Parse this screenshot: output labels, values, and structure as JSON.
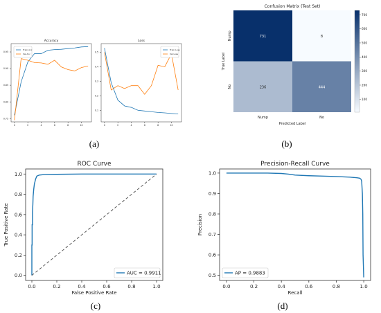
{
  "captions": [
    "(a)",
    "(b)",
    "(c)",
    "(d)"
  ],
  "chart_data": [
    {
      "panel": "a-left",
      "type": "line",
      "title": "Accuracy",
      "xlabel": "",
      "ylabel": "",
      "x": [
        0,
        1,
        2,
        3,
        4,
        5,
        6,
        7,
        8,
        9,
        10,
        11
      ],
      "xticks": [
        0,
        2,
        4,
        6,
        8,
        10
      ],
      "yticks": [
        0.75,
        0.8,
        0.85,
        0.9,
        0.95
      ],
      "ylim": [
        0.74,
        0.975
      ],
      "xlim": [
        -0.5,
        11.5
      ],
      "legend": "top-left",
      "series": [
        {
          "name": "Train Acc",
          "color": "#1f77b4",
          "values": [
            0.76,
            0.86,
            0.92,
            0.945,
            0.945,
            0.955,
            0.957,
            0.958,
            0.96,
            0.962,
            0.965,
            0.966
          ]
        },
        {
          "name": "Val Acc",
          "color": "#ff7f0e",
          "values": [
            0.745,
            0.93,
            0.925,
            0.918,
            0.917,
            0.913,
            0.925,
            0.905,
            0.897,
            0.893,
            0.903,
            0.908
          ]
        }
      ]
    },
    {
      "panel": "a-right",
      "type": "line",
      "title": "Loss",
      "xlabel": "",
      "ylabel": "",
      "x": [
        0,
        1,
        2,
        3,
        4,
        5,
        6,
        7,
        8,
        9,
        10,
        11
      ],
      "xticks": [
        0,
        2,
        4,
        6,
        8,
        10
      ],
      "yticks": [
        0.1,
        0.2,
        0.3,
        0.4,
        0.5
      ],
      "ylim": [
        0.02,
        0.56
      ],
      "xlim": [
        -0.5,
        11.5
      ],
      "legend": "top-right",
      "series": [
        {
          "name": "Train Loss",
          "color": "#1f77b4",
          "values": [
            0.53,
            0.29,
            0.17,
            0.13,
            0.12,
            0.1,
            0.095,
            0.09,
            0.085,
            0.082,
            0.078,
            0.075
          ]
        },
        {
          "name": "Val Loss",
          "color": "#ff7f0e",
          "values": [
            0.5,
            0.24,
            0.27,
            0.25,
            0.27,
            0.27,
            0.21,
            0.27,
            0.41,
            0.4,
            0.49,
            0.24
          ]
        }
      ]
    },
    {
      "panel": "b",
      "type": "heatmap",
      "title": "Confusion Matrix (Test Set)",
      "xlabel": "Predicted Label",
      "ylabel": "True Label",
      "row_labels": [
        "Nump",
        "No"
      ],
      "col_labels": [
        "Nump",
        "No"
      ],
      "values": [
        [
          731,
          8
        ],
        [
          236,
          444
        ]
      ],
      "colorbar_ticks": [
        100,
        200,
        300,
        400,
        500,
        600,
        700
      ],
      "colorbar_range": [
        8,
        731
      ]
    },
    {
      "panel": "c",
      "type": "line",
      "title": "ROC Curve",
      "xlabel": "False Positive Rate",
      "ylabel": "True Positive Rate",
      "xlim": [
        -0.05,
        1.05
      ],
      "ylim": [
        -0.05,
        1.05
      ],
      "xticks": [
        0.0,
        0.2,
        0.4,
        0.6,
        0.8,
        1.0
      ],
      "yticks": [
        0.0,
        0.2,
        0.4,
        0.6,
        0.8,
        1.0
      ],
      "legend": "lower right",
      "series": [
        {
          "name": "AUC = 0.9911",
          "color": "#1f77b4",
          "x": [
            0,
            0,
            0.002,
            0.002,
            0.005,
            0.005,
            0.008,
            0.01,
            0.015,
            0.02,
            0.03,
            0.04,
            0.06,
            0.1,
            0.2,
            0.4,
            1.0
          ],
          "y": [
            0,
            0.3,
            0.3,
            0.5,
            0.5,
            0.62,
            0.7,
            0.78,
            0.85,
            0.9,
            0.95,
            0.98,
            0.99,
            0.995,
            0.997,
            1.0,
            1.0
          ]
        },
        {
          "name": "",
          "color": "#555555",
          "dashed": true,
          "x": [
            0,
            1
          ],
          "y": [
            0,
            1
          ]
        }
      ]
    },
    {
      "panel": "d",
      "type": "line",
      "title": "Precision-Recall Curve",
      "xlabel": "Recall",
      "ylabel": "Precision",
      "xlim": [
        -0.05,
        1.05
      ],
      "ylim": [
        0.475,
        1.02
      ],
      "xticks": [
        0.0,
        0.2,
        0.4,
        0.6,
        0.8,
        1.0
      ],
      "yticks": [
        0.5,
        0.6,
        0.7,
        0.8,
        0.9,
        1.0
      ],
      "legend": "lower left",
      "series": [
        {
          "name": "AP = 0.9883",
          "color": "#1f77b4",
          "x": [
            0,
            0.3,
            0.4,
            0.45,
            0.5,
            0.6,
            0.7,
            0.8,
            0.9,
            0.95,
            0.97,
            0.98,
            0.985,
            0.99,
            0.993,
            0.995,
            1.0
          ],
          "y": [
            1.0,
            1.0,
            0.998,
            0.995,
            0.99,
            0.987,
            0.985,
            0.983,
            0.98,
            0.977,
            0.975,
            0.97,
            0.96,
            0.9,
            0.8,
            0.6,
            0.49
          ]
        }
      ]
    }
  ]
}
